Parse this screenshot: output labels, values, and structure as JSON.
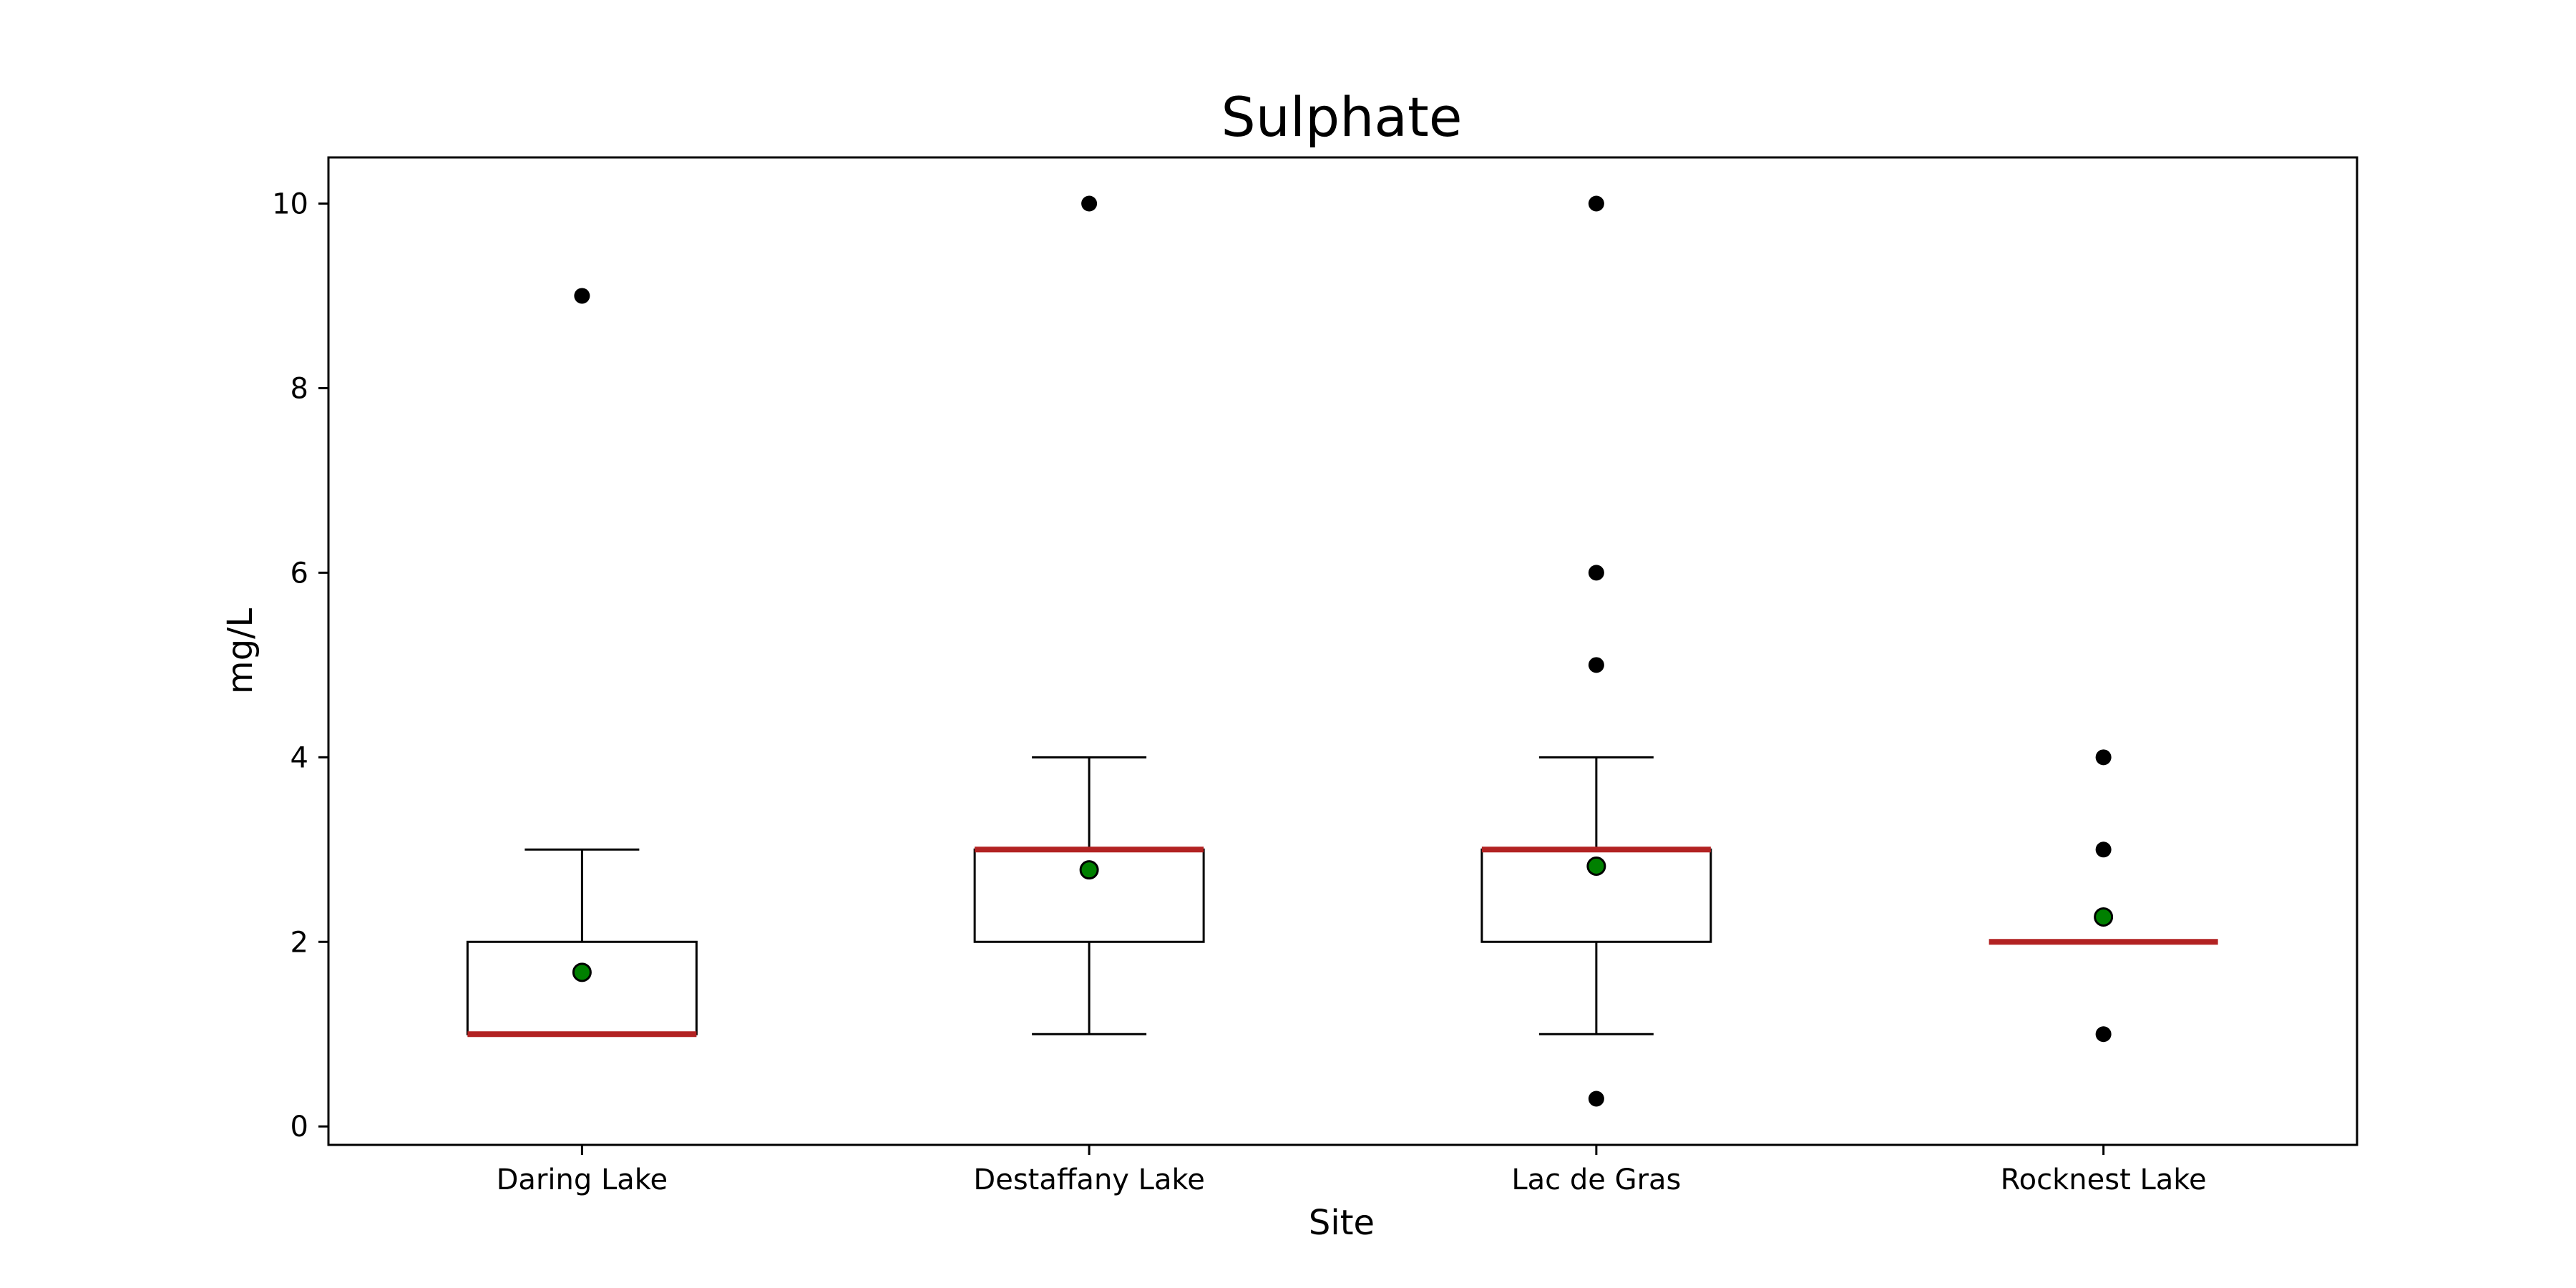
{
  "chart_data": {
    "type": "box",
    "title": "Sulphate",
    "xlabel": "Site",
    "ylabel": "mg/L",
    "ylim": [
      -0.2,
      10.5
    ],
    "yticks": [
      0,
      2,
      4,
      6,
      8,
      10
    ],
    "grid": false,
    "categories": [
      "Daring Lake",
      "Destaffany Lake",
      "Lac de Gras",
      "Rocknest Lake"
    ],
    "boxes": [
      {
        "whisker_low": 1,
        "q1": 1,
        "median": 1,
        "q3": 2,
        "whisker_high": 3,
        "mean": 1.67,
        "outliers": [
          9
        ]
      },
      {
        "whisker_low": 1,
        "q1": 2,
        "median": 3,
        "q3": 3,
        "whisker_high": 4,
        "mean": 2.78,
        "outliers": [
          10
        ]
      },
      {
        "whisker_low": 1,
        "q1": 2,
        "median": 3,
        "q3": 3,
        "whisker_high": 4,
        "mean": 2.82,
        "outliers": [
          10,
          6,
          5,
          0.3
        ]
      },
      {
        "whisker_low": 2,
        "q1": 2,
        "median": 2,
        "q3": 2,
        "whisker_high": 2,
        "mean": 2.27,
        "outliers": [
          4,
          3,
          1
        ]
      }
    ],
    "colors": {
      "median": "#b22222",
      "mean_fill": "#008000",
      "outlier": "#000000",
      "box": "#000000"
    }
  }
}
